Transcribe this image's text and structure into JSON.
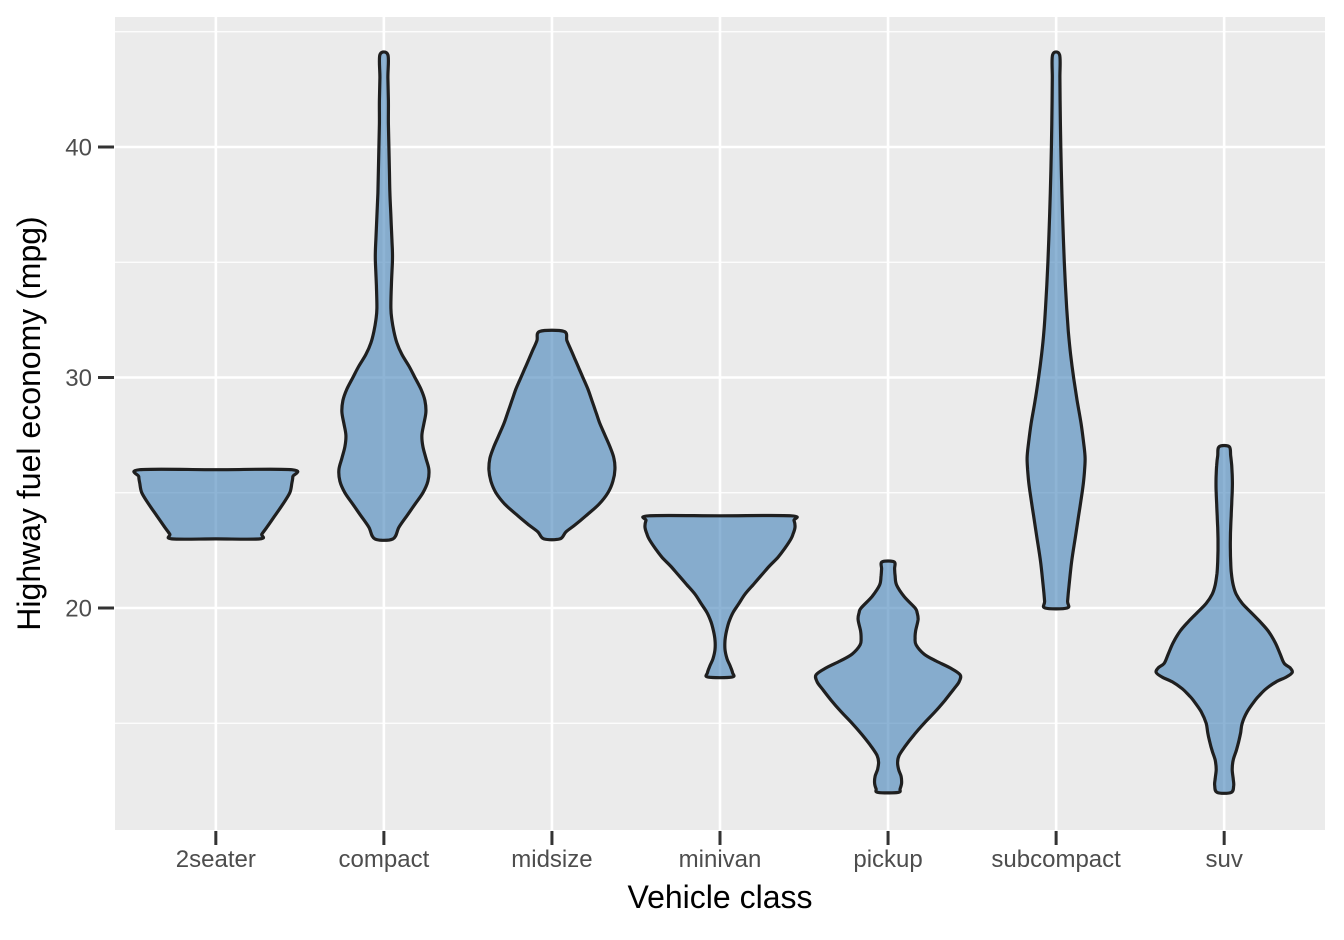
{
  "chart_data": {
    "type": "violin",
    "title": "",
    "xlabel": "Vehicle class",
    "ylabel": "Highway fuel economy (mpg)",
    "categories": [
      "2seater",
      "compact",
      "midsize",
      "minivan",
      "pickup",
      "subcompact",
      "suv"
    ],
    "y_axis": {
      "major_ticks": [
        20,
        30,
        40
      ],
      "minor_ticks": [
        15,
        25,
        35,
        45
      ],
      "lim": [
        10.4,
        45.65
      ],
      "unit": "mpg"
    },
    "x_axis": {
      "grid": "major-only"
    },
    "series": [
      {
        "name": "2seater",
        "hwy_range": [
          23,
          26
        ],
        "profile": [
          [
            26,
            76
          ],
          [
            25.7,
            77
          ],
          [
            25.4,
            76
          ],
          [
            25,
            74
          ],
          [
            24.5,
            67
          ],
          [
            24,
            59
          ],
          [
            23.5,
            51
          ],
          [
            23.2,
            46
          ],
          [
            23,
            44
          ]
        ]
      },
      {
        "name": "compact",
        "hwy_range": [
          23,
          44
        ],
        "profile": [
          [
            44,
            4
          ],
          [
            43,
            4
          ],
          [
            42,
            4.5
          ],
          [
            41,
            4.5
          ],
          [
            40,
            5
          ],
          [
            39,
            5.5
          ],
          [
            38,
            6
          ],
          [
            37,
            7
          ],
          [
            36,
            8
          ],
          [
            35.5,
            8.5
          ],
          [
            35,
            8.5
          ],
          [
            34,
            7.5
          ],
          [
            33,
            7
          ],
          [
            32.5,
            8
          ],
          [
            32,
            10
          ],
          [
            31.5,
            13
          ],
          [
            31,
            18
          ],
          [
            30.5,
            25
          ],
          [
            30,
            31
          ],
          [
            29.5,
            37
          ],
          [
            29,
            41
          ],
          [
            28.5,
            42
          ],
          [
            28,
            40
          ],
          [
            27.5,
            38
          ],
          [
            27,
            39
          ],
          [
            26.5,
            42
          ],
          [
            26,
            45
          ],
          [
            25.5,
            44
          ],
          [
            25,
            39
          ],
          [
            24.5,
            31
          ],
          [
            24,
            23
          ],
          [
            23.5,
            15
          ],
          [
            23,
            9
          ]
        ]
      },
      {
        "name": "midsize",
        "hwy_range": [
          23,
          32
        ],
        "profile": [
          [
            32,
            12
          ],
          [
            31.6,
            15
          ],
          [
            31.2,
            19
          ],
          [
            30.8,
            23
          ],
          [
            30.4,
            27
          ],
          [
            30,
            31
          ],
          [
            29.5,
            36
          ],
          [
            29,
            40
          ],
          [
            28.5,
            44
          ],
          [
            28,
            48
          ],
          [
            27.5,
            53
          ],
          [
            27,
            58
          ],
          [
            26.5,
            62
          ],
          [
            26,
            63
          ],
          [
            25.5,
            61
          ],
          [
            25,
            56
          ],
          [
            24.5,
            47
          ],
          [
            24,
            34
          ],
          [
            23.6,
            23
          ],
          [
            23.3,
            14
          ],
          [
            23,
            8
          ]
        ]
      },
      {
        "name": "minivan",
        "hwy_range": [
          17,
          24
        ],
        "profile": [
          [
            24,
            71
          ],
          [
            23.8,
            74
          ],
          [
            23.5,
            75
          ],
          [
            23.2,
            73
          ],
          [
            23,
            71
          ],
          [
            22.6,
            65
          ],
          [
            22.2,
            58
          ],
          [
            21.8,
            49
          ],
          [
            21.4,
            41
          ],
          [
            21,
            33
          ],
          [
            20.6,
            25
          ],
          [
            20.2,
            19
          ],
          [
            19.8,
            13
          ],
          [
            19.4,
            9
          ],
          [
            19,
            6.5
          ],
          [
            18.6,
            5
          ],
          [
            18.2,
            5
          ],
          [
            17.8,
            7
          ],
          [
            17.5,
            10
          ],
          [
            17.2,
            12.5
          ],
          [
            17,
            12
          ]
        ]
      },
      {
        "name": "pickup",
        "hwy_range": [
          12,
          22
        ],
        "profile": [
          [
            22,
            6
          ],
          [
            21.7,
            6.5
          ],
          [
            21.4,
            7
          ],
          [
            21,
            8.5
          ],
          [
            20.5,
            16
          ],
          [
            20,
            27
          ],
          [
            19.8,
            29
          ],
          [
            19.5,
            30
          ],
          [
            19,
            27.5
          ],
          [
            18.7,
            27
          ],
          [
            18.4,
            28
          ],
          [
            18,
            36
          ],
          [
            17.7,
            48
          ],
          [
            17.4,
            62
          ],
          [
            17.1,
            72
          ],
          [
            16.8,
            71
          ],
          [
            16.5,
            66
          ],
          [
            16,
            57
          ],
          [
            15.5,
            47
          ],
          [
            15,
            36
          ],
          [
            14.5,
            26
          ],
          [
            14,
            17
          ],
          [
            13.6,
            11
          ],
          [
            13.3,
            9.5
          ],
          [
            13,
            10.5
          ],
          [
            12.7,
            13
          ],
          [
            12.4,
            13.5
          ],
          [
            12.15,
            12
          ],
          [
            12,
            10
          ]
        ]
      },
      {
        "name": "subcompact",
        "hwy_range": [
          20,
          44
        ],
        "profile": [
          [
            44,
            3.5
          ],
          [
            43,
            3.8
          ],
          [
            42,
            4
          ],
          [
            41,
            4.3
          ],
          [
            40,
            4.7
          ],
          [
            39,
            5.2
          ],
          [
            38,
            5.8
          ],
          [
            37,
            6.5
          ],
          [
            36,
            7.3
          ],
          [
            35,
            8.2
          ],
          [
            34,
            9.3
          ],
          [
            33,
            10.6
          ],
          [
            32,
            12.2
          ],
          [
            31,
            14.5
          ],
          [
            30,
            17.5
          ],
          [
            29,
            21
          ],
          [
            28,
            25
          ],
          [
            27,
            28
          ],
          [
            26.5,
            29
          ],
          [
            26,
            28.5
          ],
          [
            25.5,
            27.5
          ],
          [
            25,
            26
          ],
          [
            24,
            22.5
          ],
          [
            23,
            19
          ],
          [
            22,
            15.5
          ],
          [
            21,
            13
          ],
          [
            20.3,
            11.5
          ],
          [
            20,
            11
          ]
        ]
      },
      {
        "name": "suv",
        "hwy_range": [
          12,
          27
        ],
        "profile": [
          [
            27,
            5
          ],
          [
            26.6,
            6.5
          ],
          [
            26.2,
            7.5
          ],
          [
            25.8,
            8
          ],
          [
            25.4,
            8.2
          ],
          [
            25,
            8
          ],
          [
            24.5,
            7.5
          ],
          [
            24,
            7
          ],
          [
            23.5,
            6.5
          ],
          [
            23,
            6.2
          ],
          [
            22.5,
            6.2
          ],
          [
            22,
            6.5
          ],
          [
            21.5,
            7.2
          ],
          [
            21,
            9
          ],
          [
            20.6,
            12
          ],
          [
            20.2,
            18
          ],
          [
            19.8,
            27
          ],
          [
            19.4,
            36
          ],
          [
            19,
            44
          ],
          [
            18.5,
            51
          ],
          [
            18,
            56
          ],
          [
            17.6,
            60
          ],
          [
            17.4,
            66
          ],
          [
            17.2,
            68
          ],
          [
            17,
            62
          ],
          [
            16.8,
            52
          ],
          [
            16.5,
            42
          ],
          [
            16.2,
            35
          ],
          [
            16,
            31
          ],
          [
            15.5,
            23
          ],
          [
            15,
            18
          ],
          [
            14.6,
            16.5
          ],
          [
            14.2,
            14.5
          ],
          [
            13.8,
            12
          ],
          [
            13.4,
            9
          ],
          [
            13,
            8
          ],
          [
            12.6,
            9
          ],
          [
            12.3,
            9.5
          ],
          [
            12,
            7
          ]
        ]
      }
    ]
  },
  "style": {
    "background": "#FFFFFF",
    "panel_bg": "#EBEBEB",
    "grid_color": "#FFFFFF",
    "violin_fill": "#4986BB",
    "violin_fill_opacity": 0.62,
    "violin_stroke": "#1F1F1F",
    "tick_label_color": "#4D4D4D",
    "axis_title_color": "#000000",
    "tick_mark_color": "#333333"
  }
}
